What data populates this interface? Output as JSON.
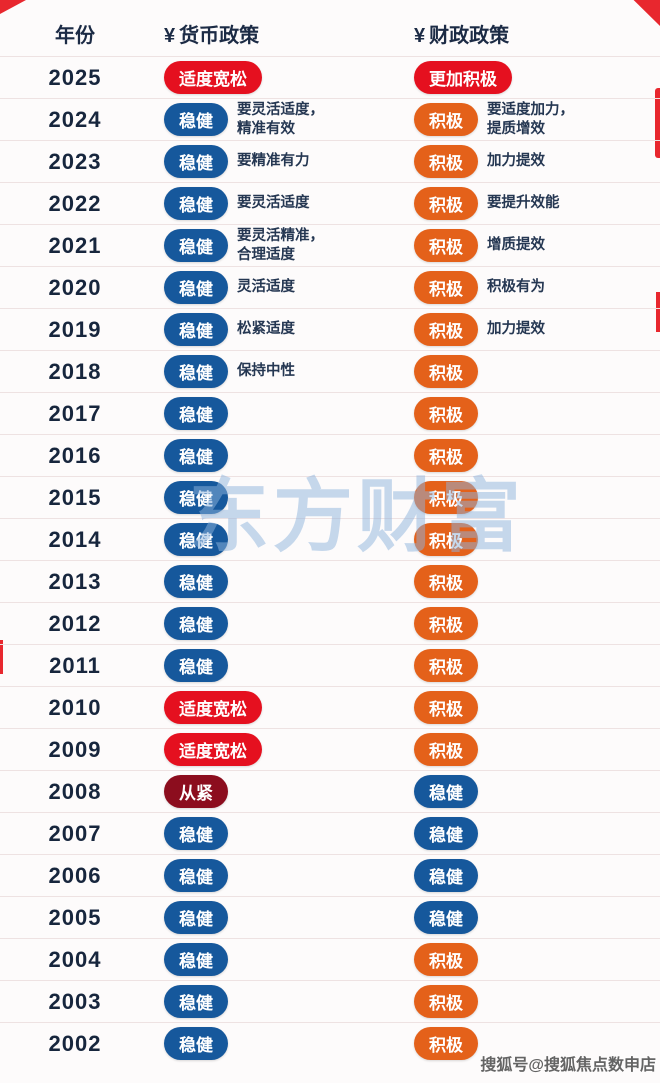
{
  "colors": {
    "blue": "#16589c",
    "orange": "#e4611a",
    "red": "#e5101f",
    "darkred": "#8c0d1e"
  },
  "watermarks": {
    "center": "东方财富",
    "bottom": "搜狐号@搜狐焦点数申店"
  },
  "header": {
    "yen": "¥",
    "year": "年份",
    "monetary": "货币政策",
    "fiscal": "财政政策"
  },
  "chart_data": {
    "type": "table",
    "title": "历年货币政策与财政政策",
    "columns": [
      "年份",
      "货币政策",
      "财政政策"
    ],
    "rows": [
      {
        "year": "2025",
        "m_label": "适度宽松",
        "m_color": "red",
        "m_note": "",
        "f_label": "更加积极",
        "f_color": "red",
        "f_note": ""
      },
      {
        "year": "2024",
        "m_label": "稳健",
        "m_color": "blue",
        "m_note": "要灵活适度，\n精准有效",
        "f_label": "积极",
        "f_color": "orange",
        "f_note": "要适度加力，\n提质增效"
      },
      {
        "year": "2023",
        "m_label": "稳健",
        "m_color": "blue",
        "m_note": "要精准有力",
        "f_label": "积极",
        "f_color": "orange",
        "f_note": "加力提效"
      },
      {
        "year": "2022",
        "m_label": "稳健",
        "m_color": "blue",
        "m_note": "要灵活适度",
        "f_label": "积极",
        "f_color": "orange",
        "f_note": "要提升效能"
      },
      {
        "year": "2021",
        "m_label": "稳健",
        "m_color": "blue",
        "m_note": "要灵活精准，\n合理适度",
        "f_label": "积极",
        "f_color": "orange",
        "f_note": "增质提效"
      },
      {
        "year": "2020",
        "m_label": "稳健",
        "m_color": "blue",
        "m_note": "灵活适度",
        "f_label": "积极",
        "f_color": "orange",
        "f_note": "积极有为"
      },
      {
        "year": "2019",
        "m_label": "稳健",
        "m_color": "blue",
        "m_note": "松紧适度",
        "f_label": "积极",
        "f_color": "orange",
        "f_note": "加力提效"
      },
      {
        "year": "2018",
        "m_label": "稳健",
        "m_color": "blue",
        "m_note": "保持中性",
        "f_label": "积极",
        "f_color": "orange",
        "f_note": ""
      },
      {
        "year": "2017",
        "m_label": "稳健",
        "m_color": "blue",
        "m_note": "",
        "f_label": "积极",
        "f_color": "orange",
        "f_note": ""
      },
      {
        "year": "2016",
        "m_label": "稳健",
        "m_color": "blue",
        "m_note": "",
        "f_label": "积极",
        "f_color": "orange",
        "f_note": ""
      },
      {
        "year": "2015",
        "m_label": "稳健",
        "m_color": "blue",
        "m_note": "",
        "f_label": "积极",
        "f_color": "orange",
        "f_note": ""
      },
      {
        "year": "2014",
        "m_label": "稳健",
        "m_color": "blue",
        "m_note": "",
        "f_label": "积极",
        "f_color": "orange",
        "f_note": ""
      },
      {
        "year": "2013",
        "m_label": "稳健",
        "m_color": "blue",
        "m_note": "",
        "f_label": "积极",
        "f_color": "orange",
        "f_note": ""
      },
      {
        "year": "2012",
        "m_label": "稳健",
        "m_color": "blue",
        "m_note": "",
        "f_label": "积极",
        "f_color": "orange",
        "f_note": ""
      },
      {
        "year": "2011",
        "m_label": "稳健",
        "m_color": "blue",
        "m_note": "",
        "f_label": "积极",
        "f_color": "orange",
        "f_note": ""
      },
      {
        "year": "2010",
        "m_label": "适度宽松",
        "m_color": "red",
        "m_note": "",
        "f_label": "积极",
        "f_color": "orange",
        "f_note": ""
      },
      {
        "year": "2009",
        "m_label": "适度宽松",
        "m_color": "red",
        "m_note": "",
        "f_label": "积极",
        "f_color": "orange",
        "f_note": ""
      },
      {
        "year": "2008",
        "m_label": "从紧",
        "m_color": "darkred",
        "m_note": "",
        "f_label": "稳健",
        "f_color": "blue",
        "f_note": ""
      },
      {
        "year": "2007",
        "m_label": "稳健",
        "m_color": "blue",
        "m_note": "",
        "f_label": "稳健",
        "f_color": "blue",
        "f_note": ""
      },
      {
        "year": "2006",
        "m_label": "稳健",
        "m_color": "blue",
        "m_note": "",
        "f_label": "稳健",
        "f_color": "blue",
        "f_note": ""
      },
      {
        "year": "2005",
        "m_label": "稳健",
        "m_color": "blue",
        "m_note": "",
        "f_label": "稳健",
        "f_color": "blue",
        "f_note": ""
      },
      {
        "year": "2004",
        "m_label": "稳健",
        "m_color": "blue",
        "m_note": "",
        "f_label": "积极",
        "f_color": "orange",
        "f_note": ""
      },
      {
        "year": "2003",
        "m_label": "稳健",
        "m_color": "blue",
        "m_note": "",
        "f_label": "积极",
        "f_color": "orange",
        "f_note": ""
      },
      {
        "year": "2002",
        "m_label": "稳健",
        "m_color": "blue",
        "m_note": "",
        "f_label": "积极",
        "f_color": "orange",
        "f_note": ""
      }
    ]
  }
}
